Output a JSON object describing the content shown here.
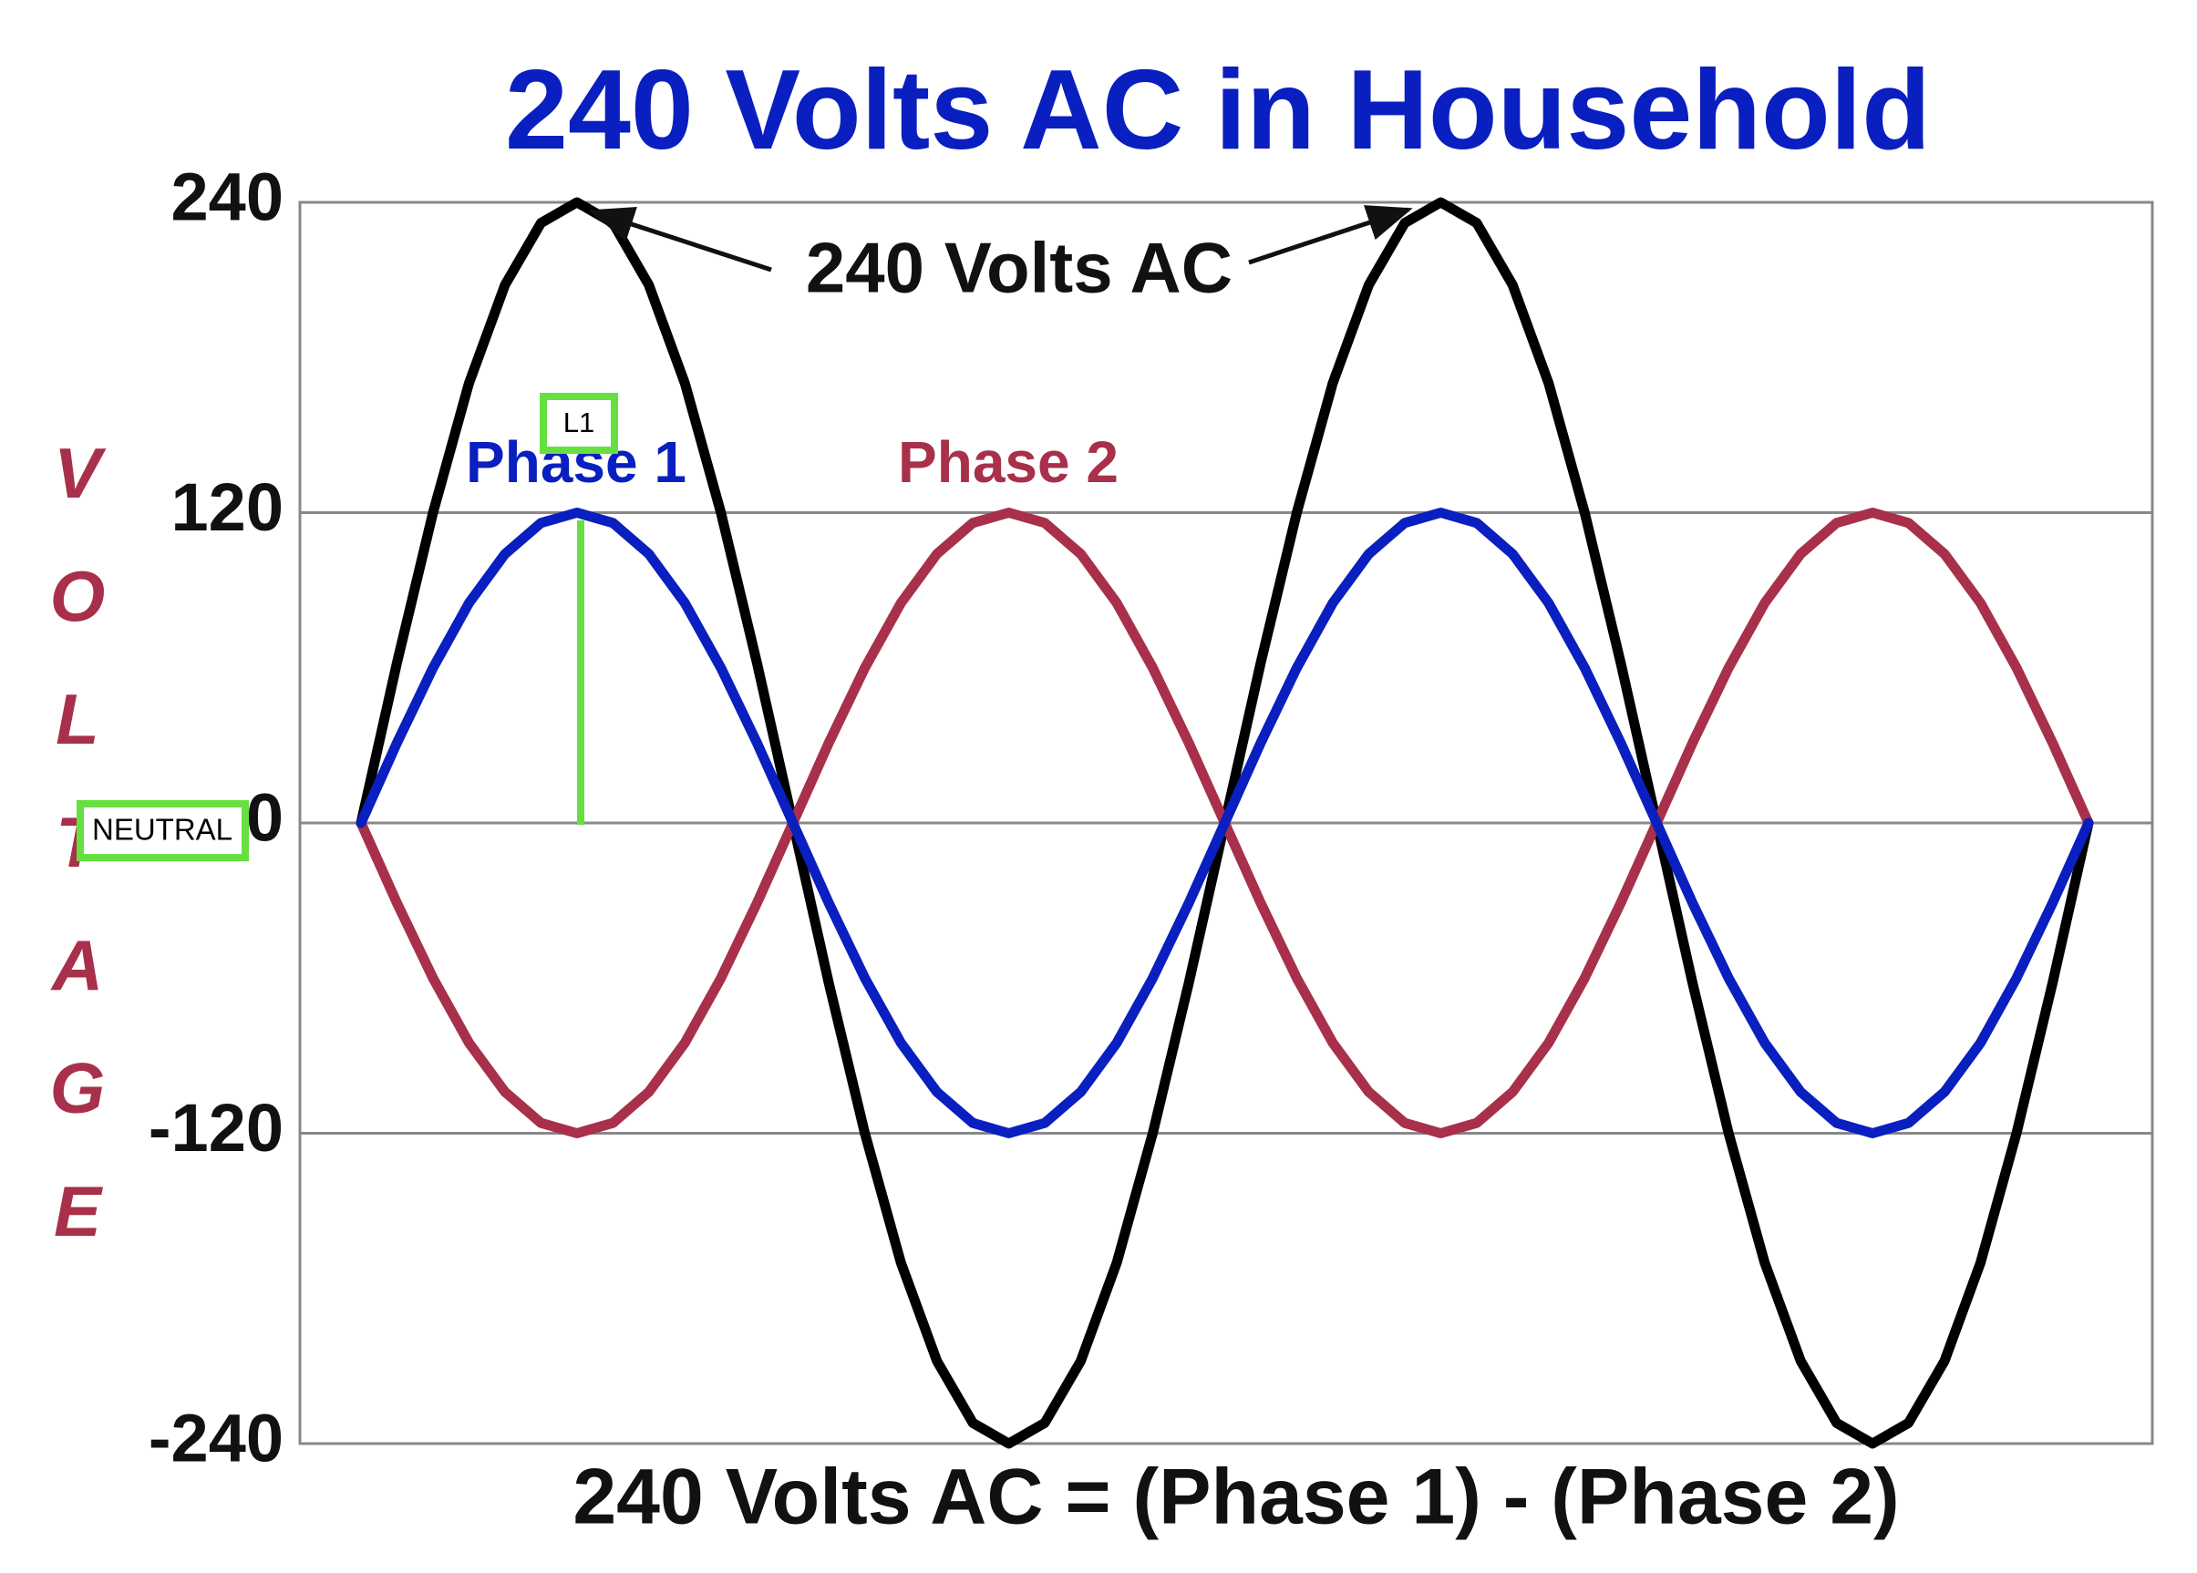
{
  "chart_data": {
    "type": "line",
    "title": "240 Volts AC in Household",
    "y_label": "VOLTAGE",
    "footer": "240 Volts AC = (Phase 1) - (Phase 2)",
    "categories": [
      null,
      null,
      null,
      null,
      null,
      null,
      null,
      null,
      null,
      null,
      null,
      null,
      null,
      null,
      null,
      null,
      null,
      null,
      null,
      null,
      null,
      null,
      null,
      null,
      null,
      null,
      null,
      null,
      null,
      null,
      null,
      null,
      null,
      null,
      null,
      null,
      null,
      null,
      null,
      null,
      null,
      null,
      null,
      null,
      null,
      null,
      null,
      null,
      null
    ],
    "series": [
      {
        "name": "240 Volts AC",
        "color": "#000000",
        "values": [
          0,
          62,
          120,
          170,
          208,
          232,
          240,
          232,
          208,
          170,
          120,
          62,
          0,
          -62,
          -120,
          -170,
          -208,
          -232,
          -240,
          -232,
          -208,
          -170,
          -120,
          -62,
          0,
          62,
          120,
          170,
          208,
          232,
          240,
          232,
          208,
          170,
          120,
          62,
          0,
          -62,
          -120,
          -170,
          -208,
          -232,
          -240,
          -232,
          -208,
          -170,
          -120,
          -62,
          0
        ]
      },
      {
        "name": "Phase 2",
        "color": "#a8304a",
        "values": [
          0,
          -31,
          -60,
          -85,
          -104,
          -116,
          -120,
          -116,
          -104,
          -85,
          -60,
          -31,
          0,
          31,
          60,
          85,
          104,
          116,
          120,
          116,
          104,
          85,
          60,
          31,
          0,
          -31,
          -60,
          -85,
          -104,
          -116,
          -120,
          -116,
          -104,
          -85,
          -60,
          -31,
          0,
          31,
          60,
          85,
          104,
          116,
          120,
          116,
          104,
          85,
          60,
          31,
          0
        ]
      },
      {
        "name": "Phase 1",
        "color": "#0a1fbf",
        "values": [
          0,
          31,
          60,
          85,
          104,
          116,
          120,
          116,
          104,
          85,
          60,
          31,
          0,
          -31,
          -60,
          -85,
          -104,
          -116,
          -120,
          -116,
          -104,
          -85,
          -60,
          -31,
          0,
          31,
          60,
          85,
          104,
          116,
          120,
          116,
          104,
          85,
          60,
          31,
          0,
          -31,
          -60,
          -85,
          -104,
          -116,
          -120,
          -116,
          -104,
          -85,
          -60,
          -31,
          0
        ]
      }
    ],
    "ylim": [
      -240,
      240
    ],
    "yticks": [
      240,
      120,
      0,
      -120,
      -240
    ],
    "grid": true,
    "annotations": [
      {
        "text": "L1"
      },
      {
        "text": "NEUTRAL"
      }
    ]
  }
}
